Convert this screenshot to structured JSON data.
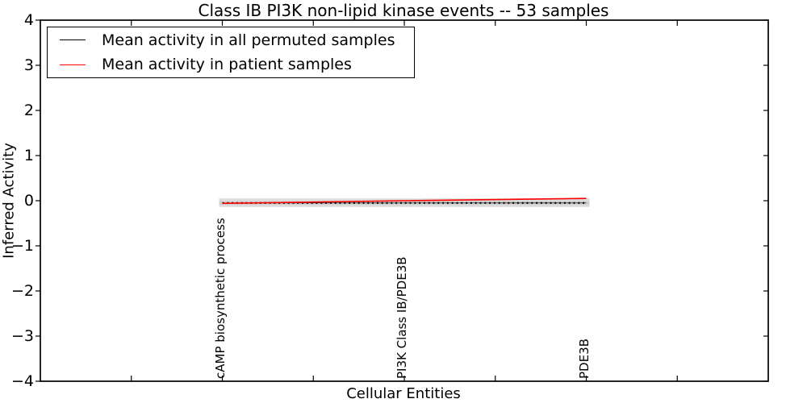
{
  "title": "Class IB PI3K non-lipid kinase events -- 53 samples",
  "legend": {
    "items": [
      {
        "label": "Mean activity in all permuted samples",
        "color": "#000000"
      },
      {
        "label": "Mean activity in patient samples",
        "color": "#ff0000"
      }
    ]
  },
  "axes": {
    "xlabel": "Cellular Entities",
    "ylabel": "Inferred Activity",
    "ytick_labels": [
      "4",
      "3",
      "2",
      "1",
      "0",
      "−1",
      "−2",
      "−3",
      "−4"
    ],
    "xtick_values": [
      0,
      1,
      2,
      3,
      4,
      5,
      6
    ]
  },
  "chart_data": {
    "type": "line",
    "title": "Class IB PI3K non-lipid kinase events -- 53 samples",
    "xlabel": "Cellular Entities",
    "ylabel": "Inferred Activity",
    "categories": [
      "cAMP biosynthetic process",
      "PI3K Class IB/PDE3B",
      "PDE3B"
    ],
    "x_positions": [
      1,
      3,
      5
    ],
    "xlim": [
      -1,
      7
    ],
    "ylim": [
      -4,
      4
    ],
    "grid": false,
    "legend_position": "upper left",
    "series": [
      {
        "name": "Mean activity in all permuted samples",
        "color": "#000000",
        "style": "dotted",
        "values": [
          -0.05,
          -0.05,
          -0.05
        ]
      },
      {
        "name": "Mean activity in patient samples",
        "color": "#ff0000",
        "style": "solid",
        "values": [
          -0.06,
          0.0,
          0.05
        ]
      }
    ],
    "bands": [
      {
        "label": "permuted std band outer",
        "low": -0.14,
        "high": 0.05,
        "color": "#dcdcdc"
      },
      {
        "label": "permuted std band inner",
        "low": -0.09,
        "high": -0.01,
        "color": "#cfcfcf"
      }
    ]
  }
}
